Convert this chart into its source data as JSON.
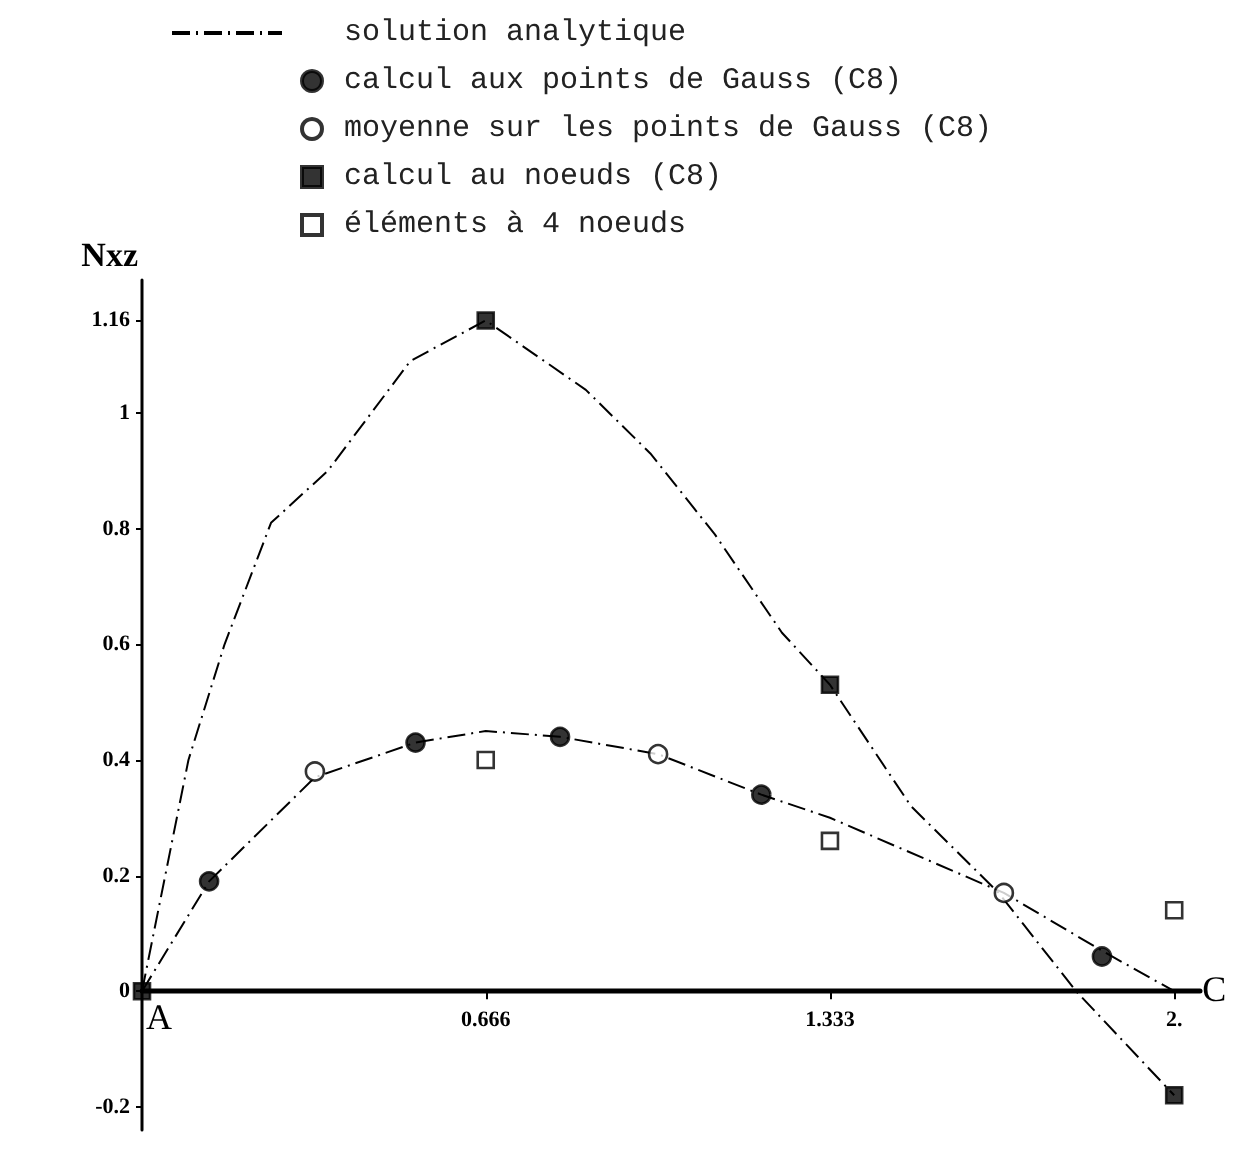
{
  "chart_data": {
    "type": "line",
    "ylabel": "Nxz",
    "xlim": [
      0,
      2.05
    ],
    "ylim": [
      -0.24,
      1.23
    ],
    "xticks": [
      0.666,
      1.333,
      {
        "value": 2,
        "label": "2."
      }
    ],
    "yticks": [
      -0.2,
      0,
      0.2,
      0.4,
      0.6,
      0.8,
      1,
      1.16
    ],
    "grid": false,
    "legend": "top",
    "line_style": "dashdot",
    "annotations": [
      {
        "text": "A",
        "x": 0,
        "y": 0
      },
      {
        "text": "C",
        "x": 2,
        "y": 0
      }
    ],
    "series": [
      {
        "name": "solution analytique",
        "color": "#000000",
        "marker": "none",
        "x": [
          0,
          0.09,
          0.16,
          0.25,
          0.36,
          0.52,
          0.666,
          0.86,
          0.985,
          1.11,
          1.24,
          1.333,
          1.49,
          1.66,
          1.81,
          2
        ],
        "values": [
          0,
          0.4,
          0.6,
          0.81,
          0.9,
          1.09,
          1.16,
          1.04,
          0.93,
          0.79,
          0.62,
          0.53,
          0.32,
          0.17,
          0,
          -0.18
        ]
      },
      {
        "color": "#000000",
        "marker": "none",
        "x": [
          0,
          0.13,
          0.335,
          0.53,
          0.666,
          0.81,
          1,
          1.2,
          1.333,
          1.67,
          1.86,
          2
        ],
        "values": [
          0,
          0.19,
          0.37,
          0.43,
          0.45,
          0.44,
          0.41,
          0.34,
          0.3,
          0.17,
          0.07,
          0
        ]
      },
      {
        "name": "calcul aux points de Gauss (C8)",
        "type": "scatter",
        "color": "#000000",
        "marker": "circle",
        "x": [
          0.13,
          0.53,
          0.81,
          1.2,
          1.86
        ],
        "values": [
          0.19,
          0.43,
          0.44,
          0.34,
          0.06
        ]
      },
      {
        "name": "moyenne sur les points de Gauss (C8)",
        "type": "scatter",
        "color": "#ffffff",
        "marker": "circle",
        "x": [
          0.335,
          1,
          1.67
        ],
        "values": [
          0.38,
          0.41,
          0.17
        ]
      },
      {
        "name": "calcul au noeuds (C8)",
        "type": "scatter",
        "color": "#000000",
        "marker": "square",
        "x": [
          0,
          0.666,
          1.333,
          2
        ],
        "values": [
          0,
          1.16,
          0.53,
          -0.18
        ]
      },
      {
        "name": "éléments à 4 noeuds",
        "type": "scatter",
        "color": "#ffffff",
        "marker": "square",
        "x": [
          0.666,
          1.333,
          2
        ],
        "values": [
          0.4,
          0.26,
          0.14
        ]
      }
    ]
  }
}
